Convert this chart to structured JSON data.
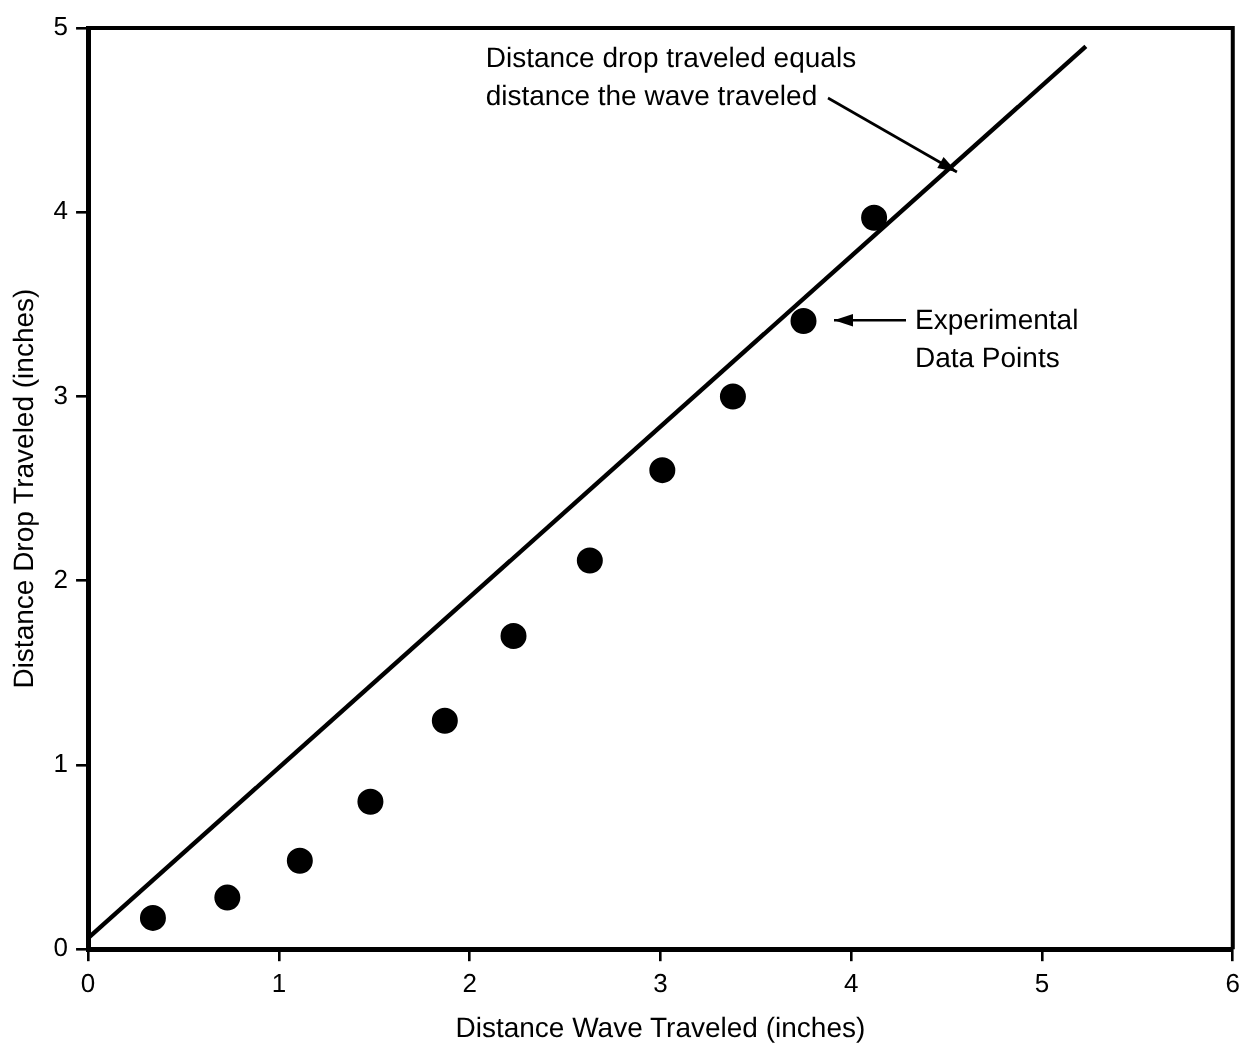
{
  "chart_data": {
    "type": "scatter",
    "xlabel": "Distance Wave Traveled (inches)",
    "ylabel": "Distance Drop Traveled (inches)",
    "xlim": [
      0,
      6
    ],
    "ylim": [
      0,
      5
    ],
    "xticks": [
      0,
      1,
      2,
      3,
      4,
      5,
      6
    ],
    "yticks": [
      0,
      1,
      2,
      3,
      4,
      5
    ],
    "grid": false,
    "legend": false,
    "marker": "circle",
    "series": [
      {
        "type": "line",
        "color": "#000000",
        "x": [
          0,
          5.23
        ],
        "values": [
          0.06,
          4.9
        ],
        "marker": "none",
        "line_style": "solid"
      },
      {
        "type": "scatter",
        "color": "#000000",
        "x": [
          0.34,
          0.73,
          1.11,
          1.48,
          1.87,
          2.23,
          2.63,
          3.01,
          3.38,
          3.75,
          4.12
        ],
        "values": [
          0.17,
          0.28,
          0.48,
          0.8,
          1.24,
          1.7,
          2.11,
          2.6,
          3.0,
          3.41,
          3.97
        ]
      }
    ],
    "annotations": [
      {
        "text": "Distance drop traveled equals\ndistance the wave traveled",
        "x": 4.55,
        "y": 4.22
      },
      "Experimental\nData Points"
    ]
  }
}
